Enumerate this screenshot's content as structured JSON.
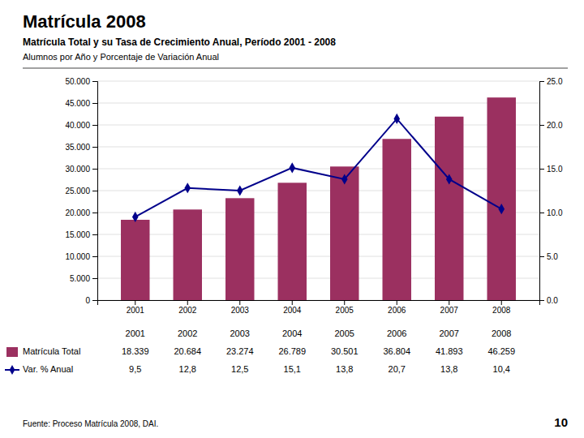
{
  "chart_data": {
    "type": "bar",
    "title": "Matrícula 2008",
    "subtitle": "Matrícula Total y su Tasa de Crecimiento Anual, Período 2001 - 2008",
    "annotations": [
      "Alumnos por Año y Porcentaje de Variación Anual",
      "Fuente: Proceso Matrícula 2008, DAI.",
      "10"
    ],
    "categories": [
      "2001",
      "2002",
      "2003",
      "2004",
      "2005",
      "2006",
      "2007",
      "2008"
    ],
    "series": [
      {
        "name": "Matrícula Total",
        "type": "bar",
        "color": "#9b3060",
        "values": [
          18339,
          20684,
          23274,
          26789,
          30501,
          36804,
          41893,
          46259
        ],
        "value_labels": [
          "18.339",
          "20.684",
          "23.274",
          "26.789",
          "30.501",
          "36.804",
          "41.893",
          "46.259"
        ]
      },
      {
        "name": "Var. % Anual",
        "type": "line",
        "color": "#00008b",
        "marker": "diamond",
        "axis": "y2",
        "values": [
          9.5,
          12.8,
          12.5,
          15.1,
          13.8,
          20.7,
          13.8,
          10.4
        ],
        "value_labels": [
          "9,5",
          "12,8",
          "12,5",
          "15,1",
          "13,8",
          "20,7",
          "13,8",
          "10,4"
        ]
      }
    ],
    "ylim": [
      0,
      50000
    ],
    "yticks": [
      0,
      {
        "value": 5000,
        "label": "5.000"
      },
      {
        "value": 10000,
        "label": "10.000"
      },
      {
        "value": 15000,
        "label": "15.000"
      },
      {
        "value": 20000,
        "label": "20.000"
      },
      {
        "value": 25000,
        "label": "25.000"
      },
      {
        "value": 30000,
        "label": "30.000"
      },
      {
        "value": 35000,
        "label": "35.000"
      },
      {
        "value": 40000,
        "label": "40.000"
      },
      {
        "value": 45000,
        "label": "45.000"
      },
      {
        "value": 50000,
        "label": "50.000"
      }
    ],
    "y2lim": [
      0,
      25.0
    ],
    "y2ticks": [
      {
        "value": 0,
        "label": "0.0"
      },
      {
        "value": 5,
        "label": "5.0"
      },
      {
        "value": 10,
        "label": "10.0"
      },
      {
        "value": 15,
        "label": "15.0"
      },
      {
        "value": 20,
        "label": "20.0"
      },
      {
        "value": 25,
        "label": "25.0"
      }
    ],
    "grid": true,
    "legend": "bottom",
    "data_labels": true
  }
}
